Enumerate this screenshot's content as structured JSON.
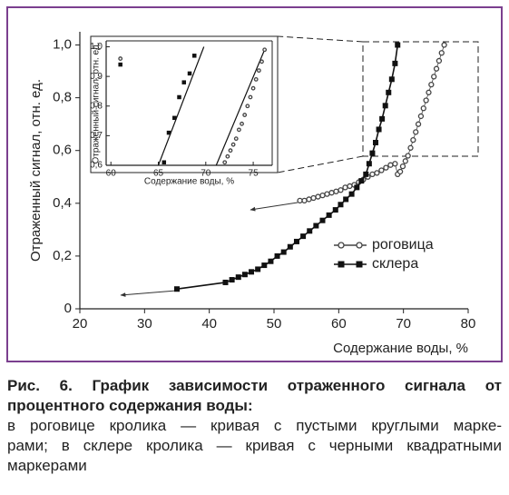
{
  "chart_data": [
    {
      "type": "scatter",
      "xlabel": "Содержание воды, %",
      "ylabel": "Отраженный сигнал, отн. ед.",
      "xlim": [
        20,
        80
      ],
      "xticks": [
        20,
        30,
        40,
        50,
        60,
        70,
        80
      ],
      "ylim": [
        0,
        1.05
      ],
      "yticks": [
        {
          "value": 0,
          "label": "0"
        },
        {
          "value": 0.2,
          "label": "0,2"
        },
        {
          "value": 0.4,
          "label": "0,4"
        },
        {
          "value": 0.6,
          "label": "0,6"
        },
        {
          "value": 0.8,
          "label": "0,8"
        },
        {
          "value": 1.0,
          "label": "1,0"
        }
      ],
      "legend": "lower right",
      "series": [
        {
          "name": "роговица",
          "marker": "circle",
          "color": "#444",
          "x": [
            54,
            54.7,
            55.4,
            56.1,
            56.8,
            57.5,
            58.2,
            58.9,
            59.6,
            60.3,
            61,
            61.7,
            62.4,
            63.1,
            63.8,
            64.5,
            65.2,
            65.9,
            66.6,
            67.3,
            68,
            68.7,
            69.1,
            69.5,
            69.9,
            70.3,
            70.7,
            71.1,
            71.5,
            71.9,
            72.3,
            72.7,
            73.1,
            73.5,
            73.9,
            74.3,
            74.7,
            75.1,
            75.5,
            75.9,
            76.3
          ],
          "values": [
            0.41,
            0.41,
            0.415,
            0.42,
            0.425,
            0.43,
            0.435,
            0.44,
            0.445,
            0.45,
            0.46,
            0.465,
            0.47,
            0.48,
            0.49,
            0.5,
            0.51,
            0.515,
            0.525,
            0.535,
            0.545,
            0.55,
            0.51,
            0.52,
            0.54,
            0.56,
            0.58,
            0.61,
            0.64,
            0.67,
            0.7,
            0.73,
            0.76,
            0.79,
            0.82,
            0.85,
            0.88,
            0.91,
            0.94,
            0.97,
            1.0
          ]
        },
        {
          "name": "склера",
          "marker": "square",
          "color": "#111",
          "x": [
            35,
            42.5,
            43.5,
            44.5,
            45.5,
            46.5,
            47.5,
            48.5,
            49.5,
            50.5,
            51.5,
            52.5,
            53.5,
            54.5,
            55.5,
            56.5,
            57.5,
            58.5,
            59.5,
            60.3,
            61.1,
            62,
            62.8,
            63.5,
            64.2,
            64.7,
            65.2,
            65.7,
            66.2,
            66.7,
            67.2,
            67.7,
            68.2,
            68.7,
            69.1
          ],
          "values": [
            0.075,
            0.1,
            0.11,
            0.12,
            0.13,
            0.14,
            0.15,
            0.165,
            0.18,
            0.2,
            0.215,
            0.235,
            0.255,
            0.275,
            0.295,
            0.315,
            0.335,
            0.355,
            0.375,
            0.395,
            0.415,
            0.435,
            0.46,
            0.485,
            0.51,
            0.55,
            0.59,
            0.63,
            0.68,
            0.72,
            0.77,
            0.82,
            0.87,
            0.93,
            1.0
          ]
        }
      ]
    },
    {
      "type": "scatter",
      "xlabel": "Содержание воды, %",
      "ylabel": "Отраженный сигнал, отн. ед.",
      "xlim": [
        59.5,
        77
      ],
      "xticks": [
        60,
        65,
        70,
        75
      ],
      "ylim": [
        0.6,
        1.02
      ],
      "yticks": [
        {
          "value": 0.6,
          "label": "0,6"
        },
        {
          "value": 0.7,
          "label": "0,7"
        },
        {
          "value": 0.8,
          "label": "0,8"
        },
        {
          "value": 0.9,
          "label": "0,9"
        },
        {
          "value": 1.0,
          "label": "1,0"
        }
      ],
      "series": [
        {
          "marker": "circle",
          "color": "#444",
          "x": [
            61,
            72,
            72.3,
            72.6,
            72.9,
            73.2,
            73.5,
            73.8,
            74.1,
            74.4,
            74.7,
            75,
            75.3,
            75.6,
            75.9,
            76.2
          ],
          "values": [
            0.96,
            0.61,
            0.63,
            0.65,
            0.67,
            0.69,
            0.72,
            0.74,
            0.77,
            0.8,
            0.83,
            0.86,
            0.89,
            0.92,
            0.95,
            0.99
          ]
        },
        {
          "marker": "square",
          "color": "#111",
          "x": [
            61,
            65.6,
            66.1,
            66.7,
            67.2,
            67.7,
            68.3,
            68.8
          ],
          "values": [
            0.94,
            0.61,
            0.71,
            0.76,
            0.83,
            0.88,
            0.91,
            0.97
          ]
        }
      ],
      "fit_lines": [
        {
          "x": [
            65,
            69.8
          ],
          "values": [
            0.6,
            1.0
          ]
        },
        {
          "x": [
            71.1,
            76.2
          ],
          "values": [
            0.6,
            0.99
          ]
        }
      ]
    }
  ],
  "caption": {
    "title": [
      "Рис. 6. График зависимости отраженного сигнала от",
      "процентного содержания воды:"
    ],
    "text": [
      "в роговице кролика — кривая с пустыми круглыми марке-",
      "рами; в склере кролика — кривая с черными квадратными",
      "маркерами"
    ]
  }
}
